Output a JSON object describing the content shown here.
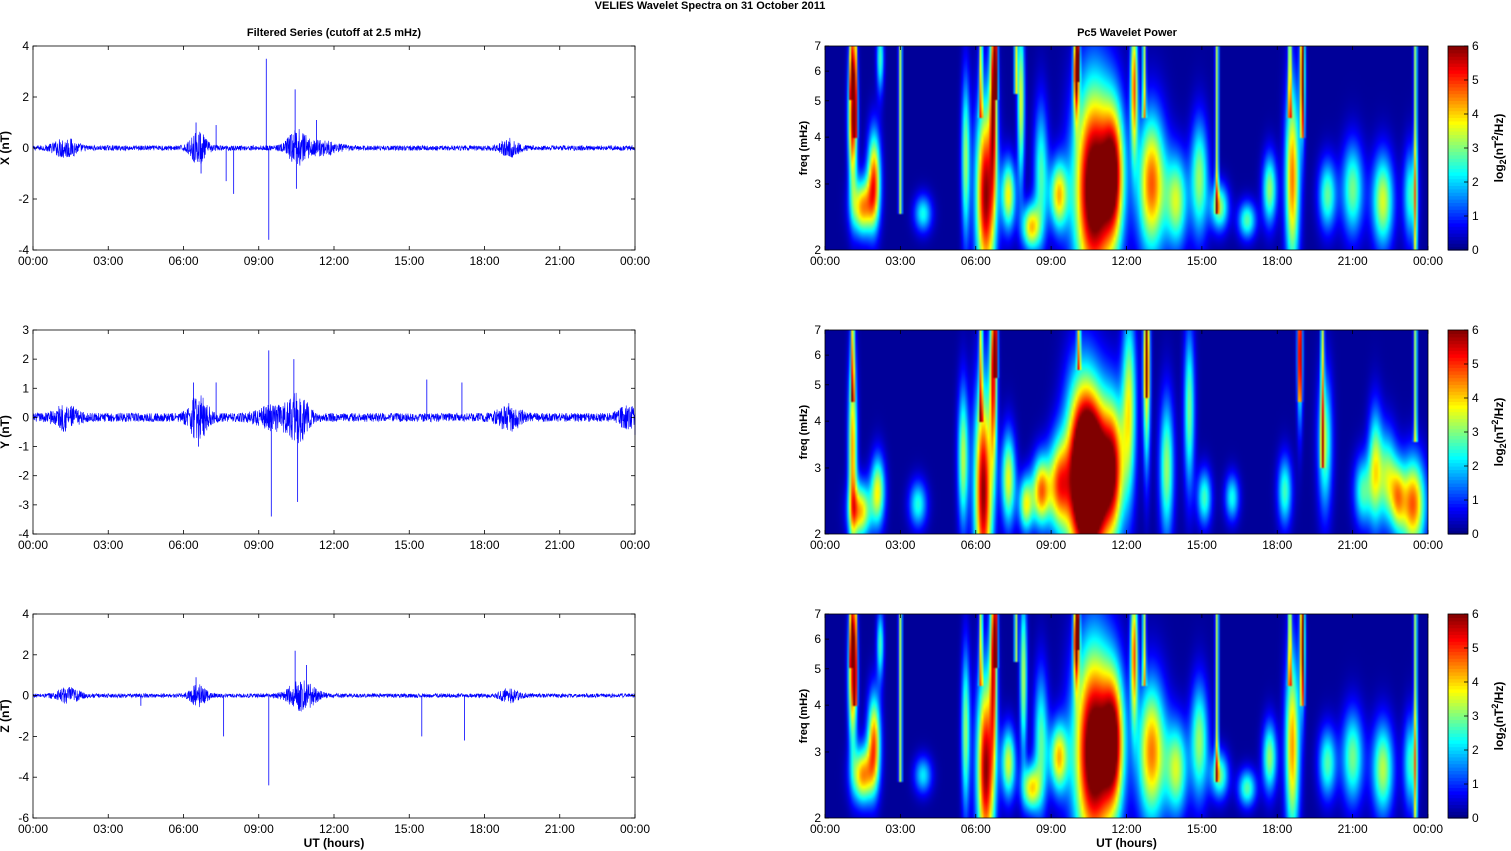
{
  "figure": {
    "title": "VELIES Wavelet Spectra on 31 October   2011",
    "left_column_title": "Filtered Series (cutoff at 2.5 mHz)",
    "right_column_title": "Pc5 Wavelet Power"
  },
  "chart_data": [
    {
      "type": "line",
      "panel": "X series",
      "title": "Filtered Series (cutoff at 2.5 mHz)",
      "xlabel": "",
      "ylabel": "X (nT)",
      "xlim_hours": [
        0,
        24
      ],
      "ylim": [
        -4,
        4
      ],
      "xticks": [
        "00:00",
        "03:00",
        "06:00",
        "09:00",
        "12:00",
        "15:00",
        "18:00",
        "21:00",
        "00:00"
      ],
      "yticks": [
        -4,
        -2,
        0,
        2,
        4
      ],
      "line_color": "#0000ff",
      "noise_amplitude": 0.1,
      "bursts": [
        [
          1.3,
          0.5,
          0.35
        ],
        [
          6.6,
          0.35,
          0.6
        ],
        [
          10.5,
          0.4,
          0.6
        ],
        [
          11.4,
          0.8,
          0.25
        ],
        [
          19.0,
          0.4,
          0.3
        ]
      ],
      "spikes": [
        [
          6.5,
          1.0
        ],
        [
          6.7,
          -1.0
        ],
        [
          7.3,
          0.9
        ],
        [
          7.7,
          -1.3
        ],
        [
          8.0,
          -1.8
        ],
        [
          9.3,
          3.5
        ],
        [
          9.4,
          -3.6
        ],
        [
          10.45,
          2.3
        ],
        [
          10.5,
          -1.6
        ],
        [
          11.3,
          1.1
        ]
      ]
    },
    {
      "type": "line",
      "panel": "Y series",
      "xlabel": "",
      "ylabel": "Y (nT)",
      "xlim_hours": [
        0,
        24
      ],
      "ylim": [
        -4,
        3
      ],
      "xticks": [
        "00:00",
        "03:00",
        "06:00",
        "09:00",
        "12:00",
        "15:00",
        "18:00",
        "21:00",
        "00:00"
      ],
      "yticks": [
        -4,
        -3,
        -2,
        -1,
        0,
        1,
        2,
        3
      ],
      "line_color": "#0000ff",
      "noise_amplitude": 0.15,
      "bursts": [
        [
          1.3,
          0.5,
          0.35
        ],
        [
          6.6,
          0.4,
          0.7
        ],
        [
          9.7,
          0.8,
          0.35
        ],
        [
          10.6,
          0.4,
          0.7
        ],
        [
          19.0,
          0.5,
          0.35
        ],
        [
          23.7,
          0.4,
          0.3
        ]
      ],
      "spikes": [
        [
          6.4,
          1.2
        ],
        [
          6.6,
          -1.0
        ],
        [
          7.3,
          1.2
        ],
        [
          9.4,
          2.3
        ],
        [
          9.5,
          -3.4
        ],
        [
          10.4,
          2.0
        ],
        [
          10.55,
          -2.9
        ],
        [
          15.7,
          1.3
        ],
        [
          17.1,
          1.2
        ],
        [
          24.0,
          -0.6
        ]
      ]
    },
    {
      "type": "line",
      "panel": "Z series",
      "xlabel": "UT (hours)",
      "ylabel": "Z (nT)",
      "xlim_hours": [
        0,
        24
      ],
      "ylim": [
        -6,
        4
      ],
      "xticks": [
        "00:00",
        "03:00",
        "06:00",
        "09:00",
        "12:00",
        "15:00",
        "18:00",
        "21:00",
        "00:00"
      ],
      "yticks": [
        -6,
        -4,
        -2,
        0,
        2,
        4
      ],
      "line_color": "#0000ff",
      "noise_amplitude": 0.1,
      "bursts": [
        [
          1.4,
          0.5,
          0.35
        ],
        [
          6.6,
          0.35,
          0.5
        ],
        [
          10.7,
          0.6,
          0.7
        ],
        [
          19.0,
          0.4,
          0.3
        ]
      ],
      "spikes": [
        [
          4.3,
          -0.5
        ],
        [
          6.5,
          0.9
        ],
        [
          7.6,
          -2.0
        ],
        [
          9.4,
          -4.4
        ],
        [
          10.45,
          2.2
        ],
        [
          15.5,
          -2.0
        ],
        [
          17.2,
          -2.2
        ],
        [
          10.9,
          1.5
        ]
      ]
    },
    {
      "type": "heatmap",
      "panel": "X wavelet",
      "title": "Pc5 Wavelet Power",
      "xlabel": "",
      "ylabel": "freq (mHz)",
      "xlim_hours": [
        0,
        24
      ],
      "ylim_mhz": [
        2,
        7
      ],
      "y_scale": "log",
      "yticks": [
        2,
        3,
        4,
        5,
        6,
        7
      ],
      "xticks": [
        "00:00",
        "03:00",
        "06:00",
        "09:00",
        "12:00",
        "15:00",
        "18:00",
        "21:00",
        "00:00"
      ],
      "colorbar_label": "log2(nT2/Hz)",
      "colorbar_ticks": [
        0,
        1,
        2,
        3,
        4,
        5,
        6
      ],
      "colormap": "jet",
      "clim": [
        0,
        6
      ],
      "features": [
        [
          1.1,
          4.5,
          0.12,
          0.3,
          5.5
        ],
        [
          1.5,
          2.6,
          0.3,
          0.12,
          4.2
        ],
        [
          1.95,
          3.1,
          0.18,
          0.2,
          4.5
        ],
        [
          2.2,
          6.5,
          0.1,
          0.15,
          2.5
        ],
        [
          3.9,
          2.5,
          0.25,
          0.08,
          2.2
        ],
        [
          5.6,
          3.5,
          0.12,
          0.35,
          3.0
        ],
        [
          6.4,
          2.8,
          0.28,
          0.4,
          5.8
        ],
        [
          6.7,
          5.5,
          0.1,
          0.4,
          5.0
        ],
        [
          7.3,
          2.8,
          0.2,
          0.15,
          3.6
        ],
        [
          7.8,
          5.0,
          0.1,
          0.35,
          3.5
        ],
        [
          8.2,
          2.3,
          0.25,
          0.1,
          3.8
        ],
        [
          8.6,
          3.2,
          0.2,
          0.3,
          2.5
        ],
        [
          9.3,
          2.8,
          0.25,
          0.15,
          3.8
        ],
        [
          10.0,
          6.0,
          0.08,
          0.2,
          5.5
        ],
        [
          10.7,
          2.9,
          0.55,
          0.45,
          6.8
        ],
        [
          11.5,
          3.2,
          0.3,
          0.3,
          4.5
        ],
        [
          12.3,
          5.5,
          0.1,
          0.3,
          4.5
        ],
        [
          13.0,
          3.0,
          0.4,
          0.3,
          4.6
        ],
        [
          14.0,
          2.7,
          0.3,
          0.2,
          3.2
        ],
        [
          14.9,
          3.1,
          0.25,
          0.25,
          3.0
        ],
        [
          15.7,
          2.6,
          0.25,
          0.1,
          3.0
        ],
        [
          16.8,
          2.4,
          0.25,
          0.08,
          2.6
        ],
        [
          17.7,
          2.9,
          0.2,
          0.15,
          3.0
        ],
        [
          18.6,
          3.1,
          0.2,
          0.4,
          4.4
        ],
        [
          19.0,
          6.0,
          0.08,
          0.3,
          3.0
        ],
        [
          20.0,
          2.8,
          0.25,
          0.15,
          2.7
        ],
        [
          21.0,
          2.9,
          0.3,
          0.2,
          2.8
        ],
        [
          22.2,
          2.7,
          0.3,
          0.2,
          3.4
        ],
        [
          23.3,
          2.8,
          0.2,
          0.2,
          2.4
        ]
      ],
      "streaks": [
        [
          1.05,
          5.0
        ],
        [
          1.2,
          4.0
        ],
        [
          3.0,
          2.5
        ],
        [
          6.2,
          4.5
        ],
        [
          6.8,
          5.0
        ],
        [
          7.6,
          5.2
        ],
        [
          10.05,
          5.6
        ],
        [
          12.7,
          4.5
        ],
        [
          18.5,
          4.5
        ],
        [
          19.0,
          4.0
        ],
        [
          15.6,
          2.5
        ],
        [
          23.5,
          2.0
        ]
      ]
    },
    {
      "type": "heatmap",
      "panel": "Y wavelet",
      "xlabel": "",
      "ylabel": "freq (mHz)",
      "xlim_hours": [
        0,
        24
      ],
      "ylim_mhz": [
        2,
        7
      ],
      "y_scale": "log",
      "yticks": [
        2,
        3,
        4,
        5,
        6,
        7
      ],
      "xticks": [
        "00:00",
        "03:00",
        "06:00",
        "09:00",
        "12:00",
        "15:00",
        "18:00",
        "21:00",
        "00:00"
      ],
      "colorbar_label": "log2(nT2/Hz)",
      "colorbar_ticks": [
        0,
        1,
        2,
        3,
        4,
        5,
        6
      ],
      "colormap": "jet",
      "clim": [
        0,
        6
      ],
      "features": [
        [
          1.1,
          3.4,
          0.12,
          0.4,
          4.2
        ],
        [
          1.4,
          2.3,
          0.3,
          0.12,
          4.0
        ],
        [
          2.1,
          2.6,
          0.2,
          0.15,
          3.5
        ],
        [
          3.7,
          2.4,
          0.25,
          0.1,
          2.3
        ],
        [
          5.5,
          3.2,
          0.15,
          0.3,
          3.2
        ],
        [
          6.3,
          2.6,
          0.25,
          0.45,
          5.8
        ],
        [
          6.7,
          5.5,
          0.1,
          0.4,
          5.0
        ],
        [
          7.3,
          2.8,
          0.2,
          0.2,
          3.5
        ],
        [
          8.0,
          2.4,
          0.2,
          0.12,
          3.4
        ],
        [
          8.6,
          2.6,
          0.25,
          0.15,
          4.3
        ],
        [
          9.3,
          2.7,
          0.3,
          0.2,
          4.0
        ],
        [
          10.2,
          2.9,
          0.45,
          0.4,
          6.6
        ],
        [
          10.8,
          2.8,
          0.45,
          0.35,
          6.2
        ],
        [
          11.5,
          3.0,
          0.3,
          0.3,
          4.2
        ],
        [
          12.1,
          4.4,
          0.2,
          0.4,
          3.4
        ],
        [
          12.8,
          5.4,
          0.1,
          0.4,
          4.0
        ],
        [
          13.6,
          3.0,
          0.2,
          0.3,
          3.0
        ],
        [
          14.5,
          4.3,
          0.15,
          0.35,
          2.8
        ],
        [
          15.1,
          2.5,
          0.2,
          0.12,
          2.5
        ],
        [
          16.2,
          2.5,
          0.2,
          0.1,
          2.2
        ],
        [
          18.3,
          2.6,
          0.2,
          0.15,
          2.5
        ],
        [
          18.9,
          6.0,
          0.08,
          0.3,
          3.2
        ],
        [
          19.9,
          3.5,
          0.2,
          0.3,
          2.8
        ],
        [
          21.4,
          2.6,
          0.25,
          0.15,
          2.5
        ],
        [
          21.9,
          3.0,
          0.2,
          0.25,
          3.2
        ],
        [
          22.4,
          2.8,
          0.25,
          0.2,
          3.0
        ],
        [
          22.8,
          2.5,
          0.2,
          0.15,
          2.8
        ],
        [
          23.4,
          2.4,
          0.35,
          0.2,
          4.6
        ]
      ],
      "streaks": [
        [
          1.1,
          4.5
        ],
        [
          6.2,
          4.0
        ],
        [
          6.8,
          5.2
        ],
        [
          10.1,
          5.5
        ],
        [
          12.8,
          4.6
        ],
        [
          18.9,
          4.5
        ],
        [
          19.8,
          3.0
        ],
        [
          23.5,
          3.5
        ]
      ]
    },
    {
      "type": "heatmap",
      "panel": "Z wavelet",
      "xlabel": "UT (hours)",
      "ylabel": "freq (mHz)",
      "xlim_hours": [
        0,
        24
      ],
      "ylim_mhz": [
        2,
        7
      ],
      "y_scale": "log",
      "yticks": [
        2,
        3,
        4,
        5,
        6,
        7
      ],
      "xticks": [
        "00:00",
        "03:00",
        "06:00",
        "09:00",
        "12:00",
        "15:00",
        "18:00",
        "21:00",
        "00:00"
      ],
      "colorbar_label": "log2(nT2/Hz)",
      "colorbar_ticks": [
        0,
        1,
        2,
        3,
        4,
        5,
        6
      ],
      "colormap": "jet",
      "clim": [
        0,
        6
      ],
      "features": [
        [
          1.1,
          4.8,
          0.12,
          0.3,
          5.0
        ],
        [
          1.5,
          2.6,
          0.3,
          0.12,
          4.2
        ],
        [
          1.95,
          3.2,
          0.18,
          0.2,
          4.4
        ],
        [
          2.2,
          5.8,
          0.1,
          0.15,
          2.5
        ],
        [
          3.9,
          2.6,
          0.25,
          0.08,
          2.0
        ],
        [
          5.6,
          3.4,
          0.12,
          0.35,
          3.0
        ],
        [
          6.4,
          2.7,
          0.25,
          0.4,
          5.8
        ],
        [
          6.7,
          5.5,
          0.1,
          0.4,
          4.8
        ],
        [
          7.3,
          2.8,
          0.2,
          0.15,
          3.4
        ],
        [
          7.9,
          4.8,
          0.1,
          0.35,
          3.2
        ],
        [
          8.2,
          2.4,
          0.25,
          0.1,
          3.6
        ],
        [
          8.6,
          3.2,
          0.2,
          0.3,
          2.6
        ],
        [
          9.3,
          2.9,
          0.25,
          0.15,
          3.8
        ],
        [
          10.0,
          6.0,
          0.08,
          0.2,
          5.5
        ],
        [
          10.7,
          3.0,
          0.55,
          0.45,
          6.8
        ],
        [
          11.5,
          3.2,
          0.3,
          0.3,
          4.6
        ],
        [
          12.3,
          5.5,
          0.1,
          0.3,
          4.5
        ],
        [
          13.0,
          3.0,
          0.4,
          0.3,
          4.4
        ],
        [
          14.0,
          2.7,
          0.3,
          0.2,
          3.2
        ],
        [
          14.9,
          3.2,
          0.25,
          0.25,
          3.0
        ],
        [
          15.7,
          2.6,
          0.25,
          0.1,
          2.8
        ],
        [
          16.8,
          2.4,
          0.25,
          0.08,
          2.6
        ],
        [
          17.7,
          2.9,
          0.2,
          0.15,
          3.0
        ],
        [
          18.6,
          3.1,
          0.2,
          0.4,
          4.2
        ],
        [
          19.0,
          6.0,
          0.08,
          0.3,
          3.0
        ],
        [
          20.0,
          2.8,
          0.25,
          0.15,
          2.6
        ],
        [
          21.0,
          2.9,
          0.3,
          0.2,
          2.8
        ],
        [
          22.2,
          2.7,
          0.3,
          0.2,
          3.2
        ],
        [
          23.3,
          2.8,
          0.2,
          0.2,
          2.4
        ]
      ],
      "streaks": [
        [
          1.05,
          5.0
        ],
        [
          1.2,
          4.0
        ],
        [
          3.0,
          2.5
        ],
        [
          6.2,
          4.5
        ],
        [
          6.8,
          5.0
        ],
        [
          7.6,
          5.2
        ],
        [
          10.05,
          5.6
        ],
        [
          12.7,
          4.5
        ],
        [
          18.5,
          4.5
        ],
        [
          19.0,
          4.0
        ],
        [
          15.6,
          2.5
        ],
        [
          23.5,
          2.0
        ]
      ]
    }
  ]
}
